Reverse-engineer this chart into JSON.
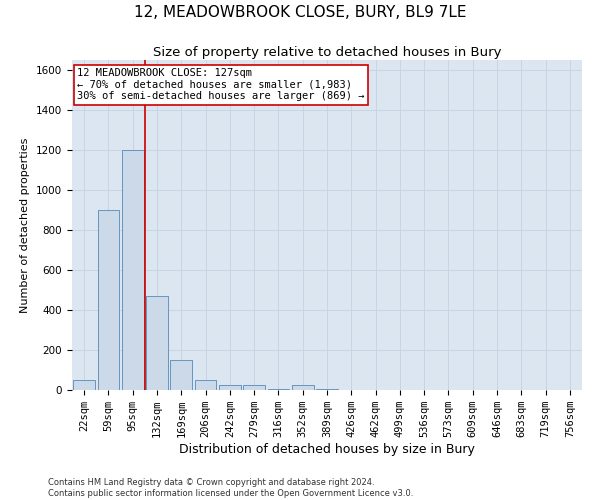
{
  "title": "12, MEADOWBROOK CLOSE, BURY, BL9 7LE",
  "subtitle": "Size of property relative to detached houses in Bury",
  "xlabel": "Distribution of detached houses by size in Bury",
  "ylabel": "Number of detached properties",
  "footer_line1": "Contains HM Land Registry data © Crown copyright and database right 2024.",
  "footer_line2": "Contains public sector information licensed under the Open Government Licence v3.0.",
  "bar_labels": [
    "22sqm",
    "59sqm",
    "95sqm",
    "132sqm",
    "169sqm",
    "206sqm",
    "242sqm",
    "279sqm",
    "316sqm",
    "352sqm",
    "389sqm",
    "426sqm",
    "462sqm",
    "499sqm",
    "536sqm",
    "573sqm",
    "609sqm",
    "646sqm",
    "683sqm",
    "719sqm",
    "756sqm"
  ],
  "bar_values": [
    50,
    900,
    1200,
    470,
    150,
    50,
    25,
    25,
    5,
    25,
    5,
    0,
    0,
    0,
    0,
    0,
    0,
    0,
    0,
    0,
    0
  ],
  "bar_color": "#ccd9e8",
  "bar_edgecolor": "#5588bb",
  "grid_color": "#c8d4e4",
  "background_color": "#dce6f0",
  "vline_color": "#cc0000",
  "annotation_box_color": "#cc0000",
  "annotation_text_line1": "12 MEADOWBROOK CLOSE: 127sqm",
  "annotation_text_line2": "← 70% of detached houses are smaller (1,983)",
  "annotation_text_line3": "30% of semi-detached houses are larger (869) →",
  "ylim": [
    0,
    1650
  ],
  "yticks": [
    0,
    200,
    400,
    600,
    800,
    1000,
    1200,
    1400,
    1600
  ],
  "title_fontsize": 11,
  "subtitle_fontsize": 9.5,
  "xlabel_fontsize": 9,
  "ylabel_fontsize": 8,
  "tick_fontsize": 7.5,
  "annotation_fontsize": 7.5,
  "footer_fontsize": 6
}
